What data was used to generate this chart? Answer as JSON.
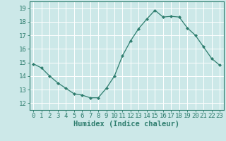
{
  "x": [
    0,
    1,
    2,
    3,
    4,
    5,
    6,
    7,
    8,
    9,
    10,
    11,
    12,
    13,
    14,
    15,
    16,
    17,
    18,
    19,
    20,
    21,
    22,
    23
  ],
  "y": [
    14.9,
    14.6,
    14.0,
    13.5,
    13.1,
    12.7,
    12.6,
    12.4,
    12.4,
    13.1,
    14.0,
    15.5,
    16.6,
    17.5,
    18.2,
    18.85,
    18.35,
    18.4,
    18.35,
    17.55,
    17.0,
    16.15,
    15.3,
    14.8
  ],
  "xlim": [
    -0.5,
    23.5
  ],
  "ylim": [
    11.5,
    19.5
  ],
  "yticks": [
    12,
    13,
    14,
    15,
    16,
    17,
    18,
    19
  ],
  "xticks": [
    0,
    1,
    2,
    3,
    4,
    5,
    6,
    7,
    8,
    9,
    10,
    11,
    12,
    13,
    14,
    15,
    16,
    17,
    18,
    19,
    20,
    21,
    22,
    23
  ],
  "xlabel": "Humidex (Indice chaleur)",
  "line_color": "#2e7d6e",
  "marker": "D",
  "marker_size": 2.0,
  "bg_color": "#cce8e8",
  "grid_color": "#ffffff",
  "axes_color": "#2e7d6e",
  "tick_label_color": "#2e7d6e",
  "xlabel_color": "#2e7d6e",
  "xlabel_fontsize": 7.5,
  "tick_fontsize": 6.5
}
